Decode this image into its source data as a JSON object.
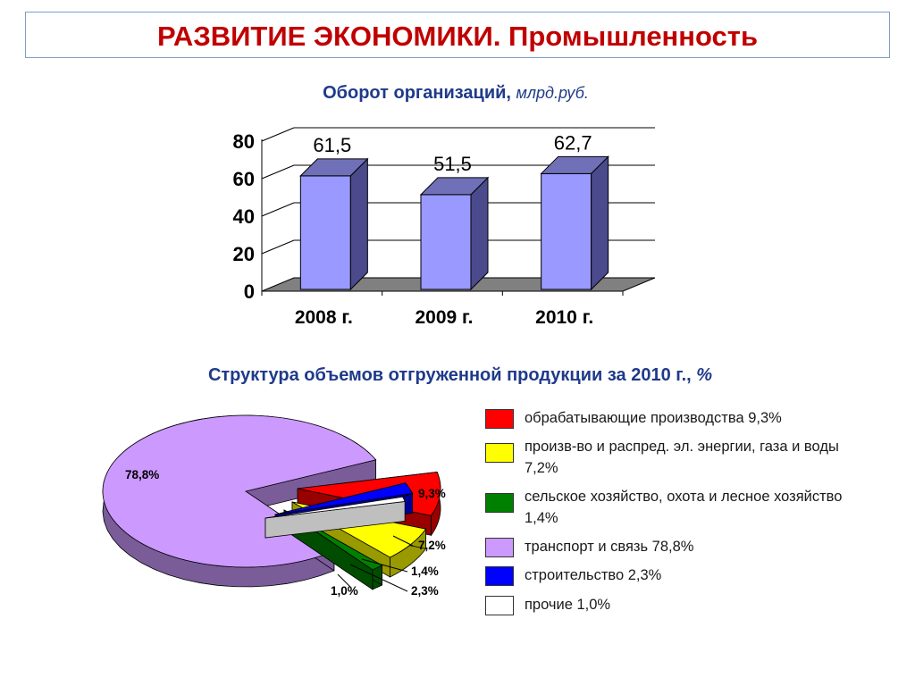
{
  "title": "РАЗВИТИЕ ЭКОНОМИКИ. Промышленность",
  "bar_title": "Оборот организаций,",
  "bar_unit": "млрд.руб.",
  "pie_title": "Структура объемов отгруженной продукции за 2010 г.,",
  "pie_unit": "%",
  "colors": {
    "title": "#c00000",
    "subtitle": "#1f3a8a",
    "bar": "#9999ff",
    "bar_side": "#4a4a8c"
  },
  "chart_data": [
    {
      "type": "bar",
      "title": "Оборот организаций, млрд.руб.",
      "categories": [
        "2008 г.",
        "2009 г.",
        "2010 г."
      ],
      "values": [
        61.5,
        51.5,
        62.7
      ],
      "data_labels": [
        "61,5",
        "51,5",
        "62,7"
      ],
      "yticks": [
        "0",
        "20",
        "40",
        "60",
        "80"
      ],
      "ylim": [
        0,
        80
      ],
      "grid": true,
      "style": "3d"
    },
    {
      "type": "pie",
      "title": "Структура объемов отгруженной продукции за 2010 г., %",
      "slices": [
        {
          "name": "обрабатывающие производства 9,3%",
          "value": 9.3,
          "label": "9,3%",
          "color": "#ff0000"
        },
        {
          "name": "произв-во и распред. эл.  энергии, газа и воды 7,2%",
          "value": 7.2,
          "label": "7,2%",
          "color": "#ffff00"
        },
        {
          "name": "сельское хозяйство, охота и лесное хозяйство 1,4%",
          "value": 1.4,
          "label": "1,4%",
          "color": "#008000"
        },
        {
          "name": "транспорт и связь 78,8%",
          "value": 78.8,
          "label": "78,8%",
          "color": "#cc99ff"
        },
        {
          "name": "строительство 2,3%",
          "value": 2.3,
          "label": "2,3%",
          "color": "#0000ff"
        },
        {
          "name": "прочие 1,0%",
          "value": 1.0,
          "label": "1,0%",
          "color": "#ffffff"
        }
      ],
      "legend_position": "right",
      "style": "3d-exploded"
    }
  ]
}
